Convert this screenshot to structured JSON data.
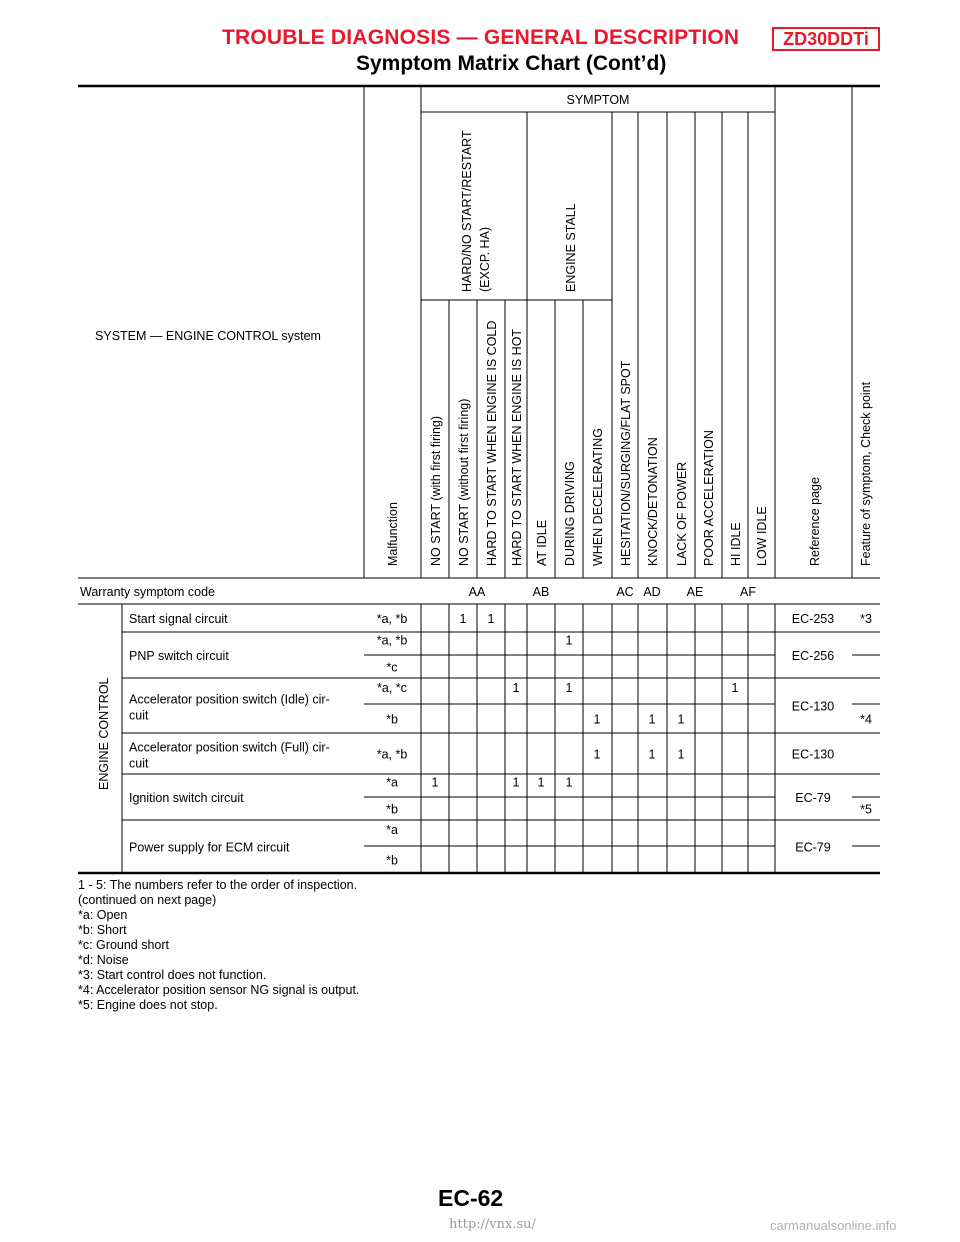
{
  "header": {
    "title": "TROUBLE DIAGNOSIS — GENERAL DESCRIPTION",
    "badge": "ZD30DDTi",
    "subtitle": "Symptom Matrix Chart (Cont’d)"
  },
  "table": {
    "system_label": "SYSTEM — ENGINE CONTROL system",
    "symptom_label": "SYMPTOM",
    "malfunction_label": "Malfunction",
    "group_hard_start": "HARD/NO START/RESTART (EXCP. HA)",
    "group_hard_start_line1": "HARD/NO START/RESTART",
    "group_hard_start_line2": "(EXCP. HA)",
    "group_engine_stall": "ENGINE STALL",
    "symptoms": [
      "NO START (with first firing)",
      "NO START (without first firing)",
      "HARD TO START WHEN ENGINE IS COLD",
      "HARD TO START WHEN ENGINE IS HOT",
      "AT IDLE",
      "DURING DRIVING",
      "WHEN DECELERATING",
      "HESITATION/SURGING/FLAT SPOT",
      "KNOCK/DETONATION",
      "LACK OF POWER",
      "POOR ACCELERATION",
      "HI IDLE",
      "LOW IDLE"
    ],
    "reference_label": "Reference page",
    "feature_label": "Feature of symptom, Check point",
    "warranty_label": "Warranty symptom code",
    "warranty_codes": [
      "AA",
      "AB",
      "AC",
      "AD",
      "AE",
      "AF"
    ],
    "category": "ENGINE CONTROL",
    "systems": [
      {
        "name": "Start signal circuit",
        "rows": [
          {
            "malfunction": "*a, *b",
            "marks": {
              "2": "1",
              "3": "1"
            }
          }
        ],
        "reference": "EC-253",
        "features": [
          "*3"
        ]
      },
      {
        "name": "PNP switch circuit",
        "rows": [
          {
            "malfunction": "*a, *b",
            "marks": {
              "6": "1"
            }
          },
          {
            "malfunction": "*c",
            "marks": {}
          }
        ],
        "reference": "EC-256",
        "features": [
          "",
          ""
        ]
      },
      {
        "name": "Accelerator position switch (Idle) cir-cuit",
        "name_line1": "Accelerator position switch (Idle) cir-",
        "name_line2": "cuit",
        "rows": [
          {
            "malfunction": "*a, *c",
            "marks": {
              "4": "1",
              "6": "1",
              "12": "1"
            }
          },
          {
            "malfunction": "*b",
            "marks": {
              "7": "1",
              "9": "1",
              "10": "1"
            }
          }
        ],
        "reference": "EC-130",
        "features": [
          "",
          "*4"
        ]
      },
      {
        "name": "Accelerator position switch (Full) cir-cuit",
        "name_line1": "Accelerator position switch (Full) cir-",
        "name_line2": "cuit",
        "rows": [
          {
            "malfunction": "*a, *b",
            "marks": {
              "7": "1",
              "9": "1",
              "10": "1"
            }
          }
        ],
        "reference": "EC-130",
        "features": [
          ""
        ]
      },
      {
        "name": "Ignition switch circuit",
        "rows": [
          {
            "malfunction": "*a",
            "marks": {
              "1": "1",
              "4": "1",
              "5": "1",
              "6": "1"
            }
          },
          {
            "malfunction": "*b",
            "marks": {}
          }
        ],
        "reference": "EC-79",
        "features": [
          "",
          "*5"
        ]
      },
      {
        "name": "Power supply for ECM circuit",
        "rows": [
          {
            "malfunction": "*a",
            "marks": {}
          },
          {
            "malfunction": "*b",
            "marks": {}
          }
        ],
        "reference": "EC-79",
        "features": [
          "",
          ""
        ]
      }
    ]
  },
  "notes": [
    "1 - 5: The numbers refer to the order of inspection.",
    "(continued on next page)",
    "*a: Open",
    "*b: Short",
    "*c: Ground short",
    "*d: Noise",
    "*3: Start control does not function.",
    "*4: Accelerator position sensor NG signal is output.",
    "*5: Engine does not stop."
  ],
  "footer": {
    "page": "EC-62",
    "url": "http://vnx.su/",
    "watermark": "carmanualsonline.info"
  }
}
